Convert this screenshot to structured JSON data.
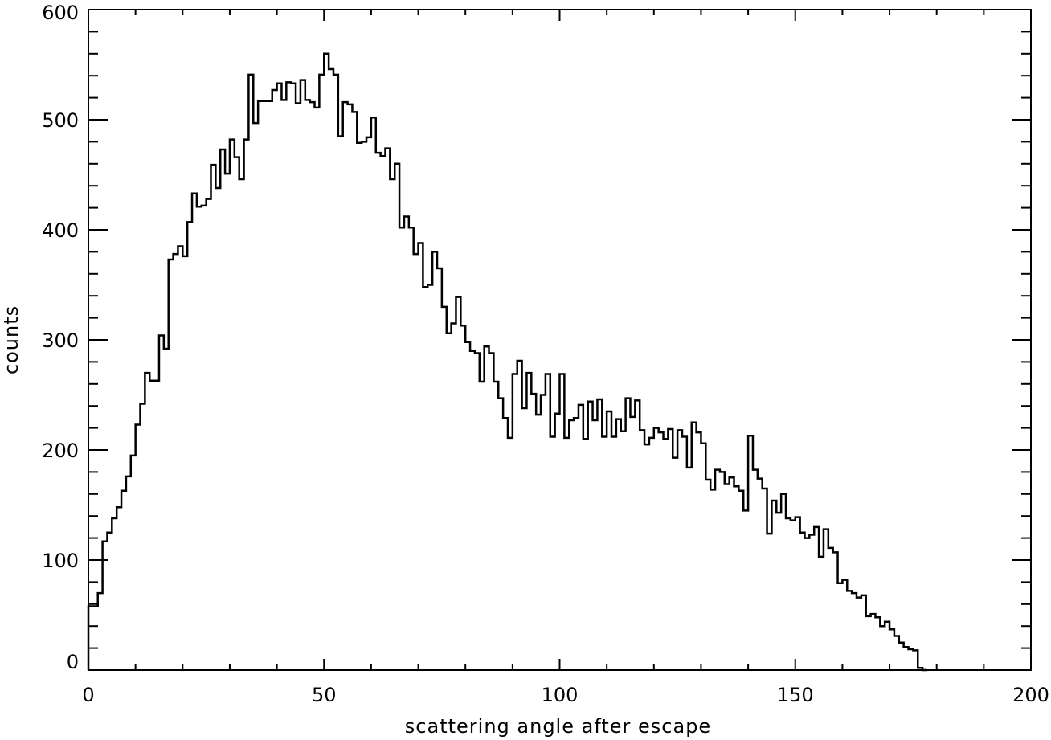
{
  "chart_data": {
    "type": "line",
    "style": "histogram-step",
    "xlabel": "scattering angle after escape",
    "ylabel": "counts",
    "xlim": [
      0,
      200
    ],
    "ylim": [
      0,
      600
    ],
    "xticks": [
      0,
      50,
      100,
      150,
      200
    ],
    "xtick_labels": [
      "0",
      "50",
      "100",
      "150",
      "200"
    ],
    "yticks": [
      0,
      100,
      200,
      300,
      400,
      500,
      600
    ],
    "ytick_labels": [
      "0",
      "100",
      "200",
      "300",
      "400",
      "500",
      "600"
    ],
    "x_minor_step": 10,
    "y_minor_step": 20,
    "grid": false,
    "legend": "none",
    "bin_width": 1,
    "x": [
      0,
      1,
      2,
      3,
      4,
      5,
      6,
      7,
      8,
      9,
      10,
      11,
      12,
      13,
      14,
      15,
      16,
      17,
      18,
      19,
      20,
      21,
      22,
      23,
      24,
      25,
      26,
      27,
      28,
      29,
      30,
      31,
      32,
      33,
      34,
      35,
      36,
      37,
      38,
      39,
      40,
      41,
      42,
      43,
      44,
      45,
      46,
      47,
      48,
      49,
      50,
      51,
      52,
      53,
      54,
      55,
      56,
      57,
      58,
      59,
      60,
      61,
      62,
      63,
      64,
      65,
      66,
      67,
      68,
      69,
      70,
      71,
      72,
      73,
      74,
      75,
      76,
      77,
      78,
      79,
      80,
      81,
      82,
      83,
      84,
      85,
      86,
      87,
      88,
      89,
      90,
      91,
      92,
      93,
      94,
      95,
      96,
      97,
      98,
      99,
      100,
      101,
      102,
      103,
      104,
      105,
      106,
      107,
      108,
      109,
      110,
      111,
      112,
      113,
      114,
      115,
      116,
      117,
      118,
      119,
      120,
      121,
      122,
      123,
      124,
      125,
      126,
      127,
      128,
      129,
      130,
      131,
      132,
      133,
      134,
      135,
      136,
      137,
      138,
      139,
      140,
      141,
      142,
      143,
      144,
      145,
      146,
      147,
      148,
      149,
      150,
      151,
      152,
      153,
      154,
      155,
      156,
      157,
      158,
      159,
      160,
      161,
      162,
      163,
      164,
      165,
      166,
      167,
      168,
      169,
      170,
      171,
      172,
      173,
      174,
      175,
      176,
      177
    ],
    "values": [
      58,
      58,
      70,
      117,
      125,
      138,
      148,
      163,
      176,
      195,
      223,
      242,
      270,
      263,
      263,
      304,
      292,
      373,
      378,
      385,
      376,
      407,
      433,
      421,
      422,
      428,
      459,
      438,
      473,
      451,
      482,
      466,
      446,
      482,
      541,
      497,
      517,
      517,
      517,
      527,
      533,
      518,
      534,
      533,
      515,
      536,
      518,
      516,
      511,
      541,
      560,
      546,
      541,
      485,
      516,
      514,
      507,
      479,
      480,
      484,
      502,
      470,
      467,
      474,
      446,
      460,
      402,
      412,
      402,
      378,
      388,
      348,
      350,
      380,
      365,
      330,
      306,
      315,
      339,
      313,
      298,
      290,
      288,
      262,
      294,
      288,
      262,
      247,
      229,
      211,
      269,
      281,
      238,
      270,
      251,
      232,
      250,
      269,
      212,
      233,
      269,
      211,
      227,
      229,
      241,
      210,
      244,
      227,
      246,
      212,
      235,
      212,
      228,
      217,
      247,
      230,
      245,
      218,
      205,
      211,
      220,
      216,
      210,
      219,
      193,
      218,
      212,
      184,
      225,
      216,
      206,
      173,
      164,
      182,
      180,
      169,
      175,
      167,
      163,
      145,
      213,
      182,
      174,
      165,
      124,
      154,
      143,
      160,
      138,
      136,
      139,
      125,
      120,
      123,
      130,
      103,
      128,
      111,
      107,
      79,
      82,
      72,
      70,
      66,
      68,
      49,
      51,
      48,
      40,
      44,
      37,
      31,
      25,
      21,
      19,
      18,
      2,
      0
    ]
  }
}
